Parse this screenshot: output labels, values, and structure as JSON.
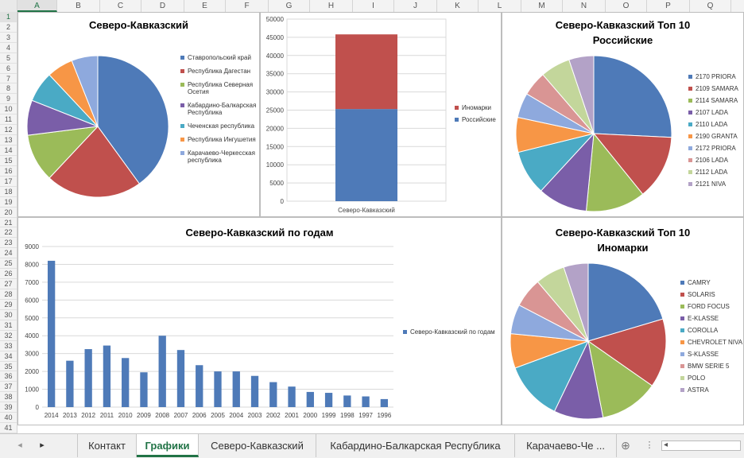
{
  "columns": [
    {
      "label": "A",
      "w": 50
    },
    {
      "label": "B",
      "w": 54
    },
    {
      "label": "C",
      "w": 52
    },
    {
      "label": "D",
      "w": 54
    },
    {
      "label": "E",
      "w": 52
    },
    {
      "label": "F",
      "w": 54
    },
    {
      "label": "G",
      "w": 52
    },
    {
      "label": "H",
      "w": 54
    },
    {
      "label": "I",
      "w": 52
    },
    {
      "label": "J",
      "w": 54
    },
    {
      "label": "K",
      "w": 52
    },
    {
      "label": "L",
      "w": 54
    },
    {
      "label": "M",
      "w": 52
    },
    {
      "label": "N",
      "w": 54
    },
    {
      "label": "O",
      "w": 52
    },
    {
      "label": "P",
      "w": 54
    },
    {
      "label": "Q",
      "w": 52
    },
    {
      "label": "R",
      "w": 54
    }
  ],
  "selected_column": "A",
  "selected_row": 1,
  "rows": [
    "1",
    "2",
    "3",
    "4",
    "5",
    "6",
    "7",
    "8",
    "9",
    "10",
    "11",
    "12",
    "13",
    "14",
    "15",
    "16",
    "17",
    "18",
    "19",
    "20",
    "21",
    "22",
    "23",
    "24",
    "25",
    "26",
    "27",
    "28",
    "29",
    "30",
    "31",
    "32",
    "33",
    "34",
    "35",
    "36",
    "37",
    "38",
    "39",
    "40",
    "41"
  ],
  "charts": {
    "region_pie": {
      "title": "Северо-Кавказский",
      "legend": [
        "Ставропольский край",
        "Республика Дагестан",
        "Республика Северная Осетия",
        "Кабардино-Балкарская Республика",
        "Чеченская республика",
        "Республика Ингушетия",
        "Карачаево-Черкесская республика"
      ]
    },
    "stacked": {
      "legend": [
        "Иномарки",
        "Российские"
      ],
      "category": "Северо-Кавказский"
    },
    "ru_top10": {
      "title_line1": "Северо-Кавказский Топ 10",
      "title_line2": "Российские",
      "legend": [
        "2170 PRIORA",
        "2109 SAMARA",
        "2114 SAMARA",
        "2107 LADA",
        "2110 LADA",
        "2190 GRANTA",
        "2172 PRIORA",
        "2106 LADA",
        "2112 LADA",
        "2121 NIVA"
      ]
    },
    "by_year": {
      "title": "Северо-Кавказский по годам",
      "legend": "Северо-Кавказский по годам"
    },
    "foreign_top10": {
      "title_line1": "Северо-Кавказский Топ 10",
      "title_line2": "Иномарки",
      "legend": [
        "CAMRY",
        "SOLARIS",
        "FORD FOCUS",
        "E-KLASSE",
        "COROLLA",
        "CHEVROLET NIVA",
        "S-KLASSE",
        "BMW SERIE 5",
        "POLO",
        "ASTRA"
      ]
    }
  },
  "chart_data": [
    {
      "type": "pie",
      "title": "Северо-Кавказский",
      "labels": [
        "Ставропольский край",
        "Республика Дагестан",
        "Республика Северная Осетия",
        "Кабардино-Балкарская Республика",
        "Чеченская республика",
        "Республика Ингушетия",
        "Карачаево-Черкесская республика"
      ],
      "values": [
        40,
        22,
        11,
        8,
        7,
        6,
        6
      ],
      "legend": "right"
    },
    {
      "type": "bar",
      "stacked": true,
      "categories": [
        "Северо-Кавказский"
      ],
      "series": [
        {
          "name": "Российские",
          "values": [
            25300
          ]
        },
        {
          "name": "Иномарки",
          "values": [
            20500
          ]
        }
      ],
      "ylim": [
        0,
        50000
      ],
      "yticks": [
        0,
        5000,
        10000,
        15000,
        20000,
        25000,
        30000,
        35000,
        40000,
        45000,
        50000
      ],
      "legend": "right"
    },
    {
      "type": "pie",
      "title": "Северо-Кавказский Топ 10 Российские",
      "labels": [
        "2170 PRIORA",
        "2109 SAMARA",
        "2114 SAMARA",
        "2107 LADA",
        "2110 LADA",
        "2190 GRANTA",
        "2172 PRIORA",
        "2106 LADA",
        "2112 LADA",
        "2121 NIVA"
      ],
      "values": [
        25,
        13,
        12,
        10,
        9,
        7,
        5,
        5,
        6,
        5
      ],
      "legend": "right"
    },
    {
      "type": "bar",
      "title": "Северо-Кавказский по годам",
      "categories": [
        "2014",
        "2013",
        "2012",
        "2011",
        "2010",
        "2009",
        "2008",
        "2007",
        "2006",
        "2005",
        "2004",
        "2003",
        "2002",
        "2001",
        "2000",
        "1999",
        "1998",
        "1997",
        "1996"
      ],
      "series": [
        {
          "name": "Северо-Кавказский по годам",
          "values": [
            8200,
            2600,
            3250,
            3450,
            2750,
            1950,
            4000,
            3200,
            2350,
            2000,
            2000,
            1750,
            1400,
            1150,
            850,
            800,
            650,
            600,
            450
          ]
        }
      ],
      "ylim": [
        0,
        9000
      ],
      "yticks": [
        0,
        1000,
        2000,
        3000,
        4000,
        5000,
        6000,
        7000,
        8000,
        9000
      ],
      "legend": "right"
    },
    {
      "type": "pie",
      "title": "Северо-Кавказский Топ 10 Иномарки",
      "labels": [
        "CAMRY",
        "SOLARIS",
        "FORD FOCUS",
        "E-KLASSE",
        "COROLLA",
        "CHEVROLET NIVA",
        "S-KLASSE",
        "BMW SERIE 5",
        "POLO",
        "ASTRA"
      ],
      "values": [
        20,
        14,
        12,
        10,
        12,
        7,
        6,
        6,
        6,
        5
      ],
      "legend": "right"
    }
  ],
  "colors": [
    "#4e7ab8",
    "#c0504d",
    "#9bbb59",
    "#7a5ea8",
    "#4aaac5",
    "#f79646",
    "#8ea9dd",
    "#d99594",
    "#c3d69b",
    "#b3a2c7"
  ],
  "sheet_tabs": [
    {
      "label": "Контакт",
      "active": false
    },
    {
      "label": "Графики",
      "active": true
    },
    {
      "label": "Северо-Кавказский",
      "active": false
    },
    {
      "label": "Кабардино-Балкарская Республика",
      "active": false
    },
    {
      "label": "Карачаево-Че ...",
      "active": false
    }
  ],
  "icons": {
    "prev": "◂",
    "next": "▸",
    "add": "⊕",
    "menu": "⋮",
    "scroll_left": "◂"
  }
}
